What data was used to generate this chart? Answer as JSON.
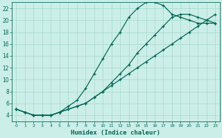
{
  "xlabel": "Humidex (Indice chaleur)",
  "bg_color": "#cceee8",
  "grid_color": "#aaddcc",
  "line_color": "#006655",
  "xlim": [
    -0.5,
    23.5
  ],
  "ylim": [
    3.0,
    23.0
  ],
  "xticks": [
    0,
    1,
    2,
    3,
    4,
    5,
    6,
    7,
    8,
    9,
    10,
    11,
    12,
    13,
    14,
    15,
    16,
    17,
    18,
    19,
    20,
    21,
    22,
    23
  ],
  "yticks": [
    4,
    6,
    8,
    10,
    12,
    14,
    16,
    18,
    20,
    22
  ],
  "series1_x": [
    0,
    1,
    2,
    3,
    4,
    5,
    6,
    7,
    8,
    9,
    10,
    11,
    12,
    13,
    14,
    15,
    16,
    17,
    18,
    19,
    20,
    21,
    22,
    23
  ],
  "series1_y": [
    5,
    4.5,
    4,
    4,
    4,
    4.5,
    5.5,
    6.5,
    8.5,
    11,
    13.5,
    16,
    18,
    20.5,
    22,
    23,
    23,
    22.5,
    21,
    20.5,
    20,
    19.5,
    19.5,
    19.5
  ],
  "series2_x": [
    0,
    1,
    2,
    3,
    4,
    5,
    6,
    7,
    8,
    9,
    10,
    11,
    12,
    13,
    14,
    15,
    16,
    17,
    18,
    19,
    20,
    21,
    22,
    23
  ],
  "series2_y": [
    5,
    4.5,
    4,
    4,
    4,
    4.5,
    5,
    5.5,
    6,
    7,
    8,
    9,
    10,
    11,
    12,
    13,
    14,
    15,
    16,
    17,
    18,
    19,
    20,
    21
  ],
  "series3_x": [
    0,
    1,
    2,
    3,
    4,
    5,
    6,
    7,
    8,
    9,
    10,
    11,
    12,
    13,
    14,
    15,
    16,
    17,
    18,
    19,
    20,
    21,
    22,
    23
  ],
  "series3_y": [
    5,
    4.5,
    4,
    4,
    4,
    4.5,
    5,
    5.5,
    6,
    7,
    8,
    9.5,
    11,
    12.5,
    14.5,
    16,
    17.5,
    19,
    20.5,
    21,
    21,
    20.5,
    20,
    19.5
  ]
}
